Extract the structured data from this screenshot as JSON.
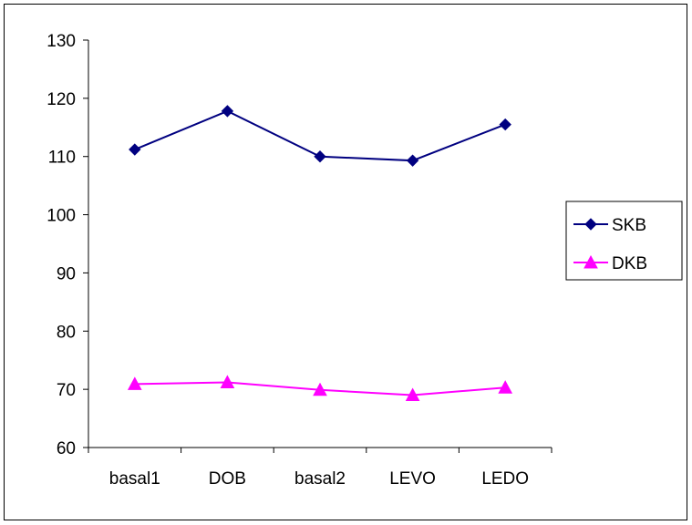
{
  "chart_data": {
    "type": "line",
    "categories": [
      "basal1",
      "DOB",
      "basal2",
      "LEVO",
      "LEDO"
    ],
    "series": [
      {
        "name": "SKB",
        "values": [
          111.2,
          117.8,
          110.0,
          109.3,
          115.5
        ],
        "color": "#000080",
        "marker": "diamond"
      },
      {
        "name": "DKB",
        "values": [
          70.9,
          71.2,
          69.9,
          69.0,
          70.3
        ],
        "color": "#ff00ff",
        "marker": "triangle"
      }
    ],
    "ylim": [
      60,
      130
    ],
    "yticks": [
      60,
      70,
      80,
      90,
      100,
      110,
      120,
      130
    ],
    "grid": false,
    "legend": "right",
    "title": "",
    "xlabel": "",
    "ylabel": ""
  }
}
